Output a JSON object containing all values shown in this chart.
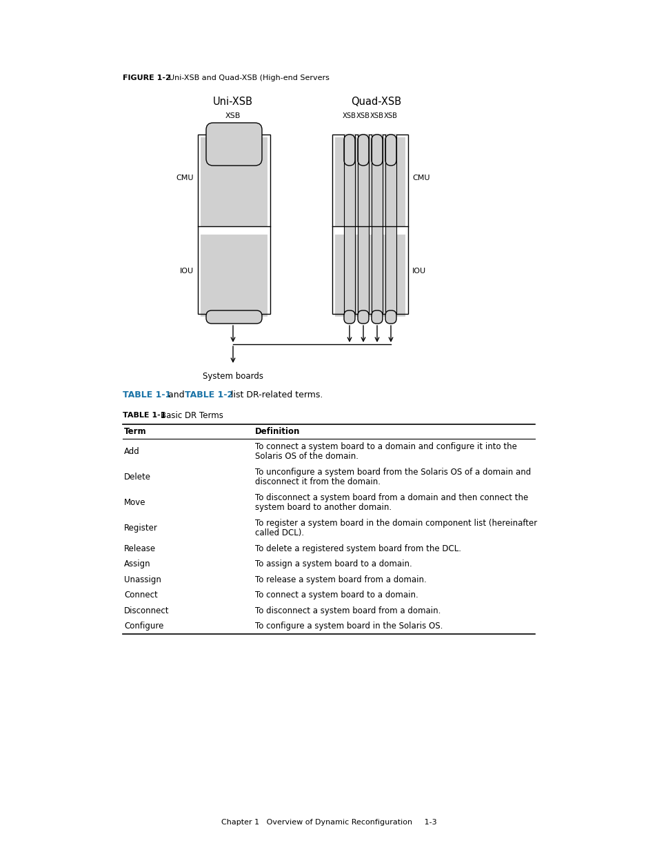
{
  "figure_label": "FIGURE 1-2",
  "figure_title": "Uni-XSB and Quad-XSB (High-end Servers",
  "uni_xsb_label": "Uni-XSB",
  "quad_xsb_label": "Quad-XSB",
  "xsb_label": "XSB",
  "cmu_label": "CMU",
  "iou_label": "IOU",
  "system_boards_label": "System boards",
  "table_ref_text_parts": [
    "TABLE 1-1",
    " and ",
    "TABLE 1-2",
    " list DR-related terms."
  ],
  "table_label": "TABLE 1-1",
  "table_title": "Basic DR Terms",
  "col_headers": [
    "Term",
    "Definition"
  ],
  "table_rows": [
    [
      "Add",
      "To connect a system board to a domain and configure it into the\nSolaris OS of the domain."
    ],
    [
      "Delete",
      "To unconfigure a system board from the Solaris OS of a domain and\ndisconnect it from the domain."
    ],
    [
      "Move",
      "To disconnect a system board from a domain and then connect the\nsystem board to another domain."
    ],
    [
      "Register",
      "To register a system board in the domain component list (hereinafter\ncalled DCL)."
    ],
    [
      "Release",
      "To delete a registered system board from the DCL."
    ],
    [
      "Assign",
      "To assign a system board to a domain."
    ],
    [
      "Unassign",
      "To release a system board from a domain."
    ],
    [
      "Connect",
      "To connect a system board to a domain."
    ],
    [
      "Disconnect",
      "To disconnect a system board from a domain."
    ],
    [
      "Configure",
      "To configure a system board in the Solaris OS."
    ]
  ],
  "footer_text": "Chapter 1   Overview of Dynamic Reconfiguration     1-3",
  "bg_color": "#ffffff",
  "text_color": "#000000",
  "link_color": "#1a73a7",
  "gray_fill": "#d0d0d0",
  "line_color": "#000000"
}
